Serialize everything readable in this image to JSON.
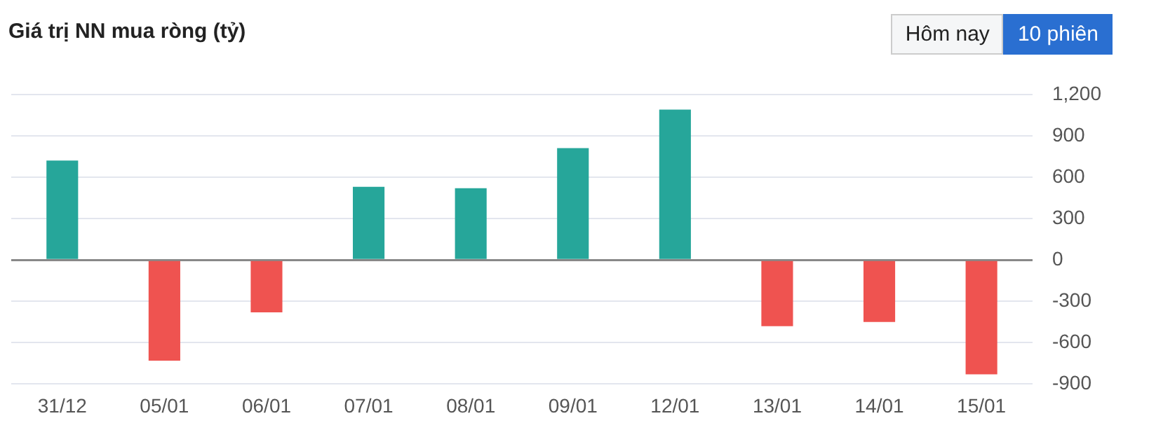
{
  "chart_data": {
    "type": "bar",
    "title": "Giá trị NN mua ròng (tỷ)",
    "categories": [
      "31/12",
      "05/01",
      "06/01",
      "07/01",
      "08/01",
      "09/01",
      "12/01",
      "13/01",
      "14/01",
      "15/01"
    ],
    "values": [
      720,
      -730,
      -380,
      530,
      520,
      810,
      1090,
      -480,
      -450,
      -830
    ],
    "colors": [
      "#26a69a",
      "#ef5350",
      "#ef5350",
      "#26a69a",
      "#26a69a",
      "#26a69a",
      "#26a69a",
      "#ef5350",
      "#ef5350",
      "#ef5350"
    ],
    "ylim": [
      -900,
      1200
    ],
    "yticks": [
      -900,
      -600,
      -300,
      0,
      300,
      600,
      900,
      {
        "value": 1200,
        "label": "1,200"
      }
    ],
    "grid": "y",
    "legend": false,
    "annotations": [
      "Hôm nay",
      "10 phiên"
    ]
  }
}
